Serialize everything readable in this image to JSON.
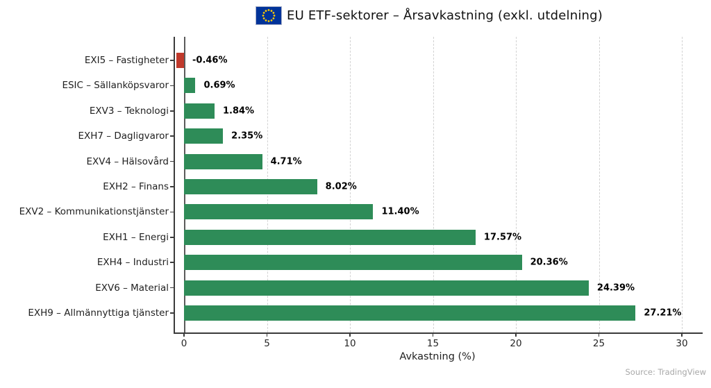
{
  "header": {
    "title": "EU ETF-sektorer – Årsavkastning (exkl. utdelning)",
    "flag_icon": "eu-flag"
  },
  "footer": {
    "source": "Source: TradingView"
  },
  "chart_data": {
    "type": "bar",
    "orientation": "horizontal",
    "title": "EU ETF-sektorer – Årsavkastning (exkl. utdelning)",
    "xlabel": "Avkastning (%)",
    "ylabel": "",
    "xlim": [
      -0.63,
      31.2
    ],
    "xticks": [
      0,
      5,
      10,
      15,
      20,
      25,
      30
    ],
    "grid": "vertical dashed gridlines at xticks, no top/right spines",
    "legend_position": "none",
    "categories": [
      "EXI5 – Fastigheter",
      "ESIC – Sällanköpsvaror",
      "EXV3 – Teknologi",
      "EXH7 – Dagligvaror",
      "EXV4 – Hälsovård",
      "EXH2 – Finans",
      "EXV2 – Kommunikationstjänster",
      "EXH1 – Energi",
      "EXH4 – Industri",
      "EXV6 – Material",
      "EXH9 – Allmännyttiga tjänster"
    ],
    "values": [
      -0.46,
      0.69,
      1.84,
      2.35,
      4.71,
      8.02,
      11.4,
      17.57,
      20.36,
      24.39,
      27.21
    ],
    "value_labels": [
      "-0.46%",
      "0.69%",
      "1.84%",
      "2.35%",
      "4.71%",
      "8.02%",
      "11.40%",
      "17.57%",
      "20.36%",
      "24.39%",
      "27.21%"
    ],
    "colors": {
      "positive_bar": "#2e8c58",
      "negative_bar": "#c0392b",
      "grid": "#d2d2d2",
      "spine": "#3a3a3a",
      "zero_line": "#5a5a5a",
      "title_text": "#111111",
      "tick_text": "#262626",
      "value_text": "#000000",
      "source_text": "#a8a8a8",
      "flag_blue": "#003399",
      "flag_stars": "#ffcc00"
    }
  }
}
